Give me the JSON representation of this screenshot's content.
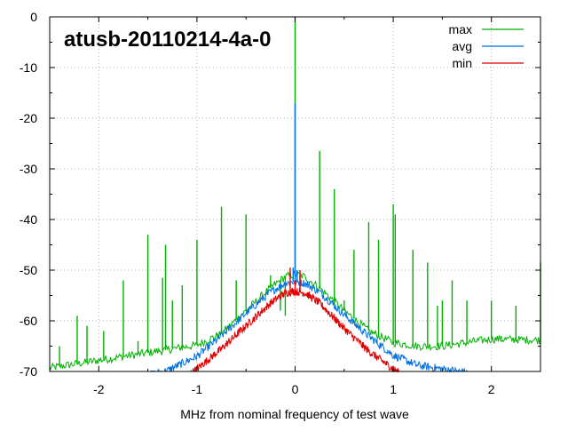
{
  "chart_data": {
    "type": "line",
    "title": "atusb-20110214-4a-0",
    "xlabel": "MHz from nominal frequency of test wave",
    "ylabel": "",
    "xlim": [
      -2.5,
      2.5
    ],
    "ylim": [
      -70,
      0
    ],
    "xticks": [
      -2,
      -1,
      0,
      1,
      2
    ],
    "xtick_labels": [
      "-2",
      "-1",
      "0",
      "1",
      "2"
    ],
    "yticks": [
      0,
      -10,
      -20,
      -30,
      -40,
      -50,
      -60,
      -70
    ],
    "ytick_labels": [
      "0",
      "-10",
      "-20",
      "-30",
      "-40",
      "-50",
      "-60",
      "-70"
    ],
    "grid": true,
    "legend_position": "top-right",
    "series": [
      {
        "name": "max",
        "color": "#00b000",
        "baseline": [
          [
            -2.5,
            -69.3
          ],
          [
            -2.0,
            -67.8
          ],
          [
            -1.5,
            -66.3
          ],
          [
            -1.0,
            -64.8
          ],
          [
            -0.75,
            -62.5
          ],
          [
            -0.5,
            -58.0
          ],
          [
            -0.25,
            -53.5
          ],
          [
            -0.1,
            -51.3
          ],
          [
            0.0,
            -50.8
          ],
          [
            0.1,
            -51.3
          ],
          [
            0.25,
            -53.5
          ],
          [
            0.5,
            -58.0
          ],
          [
            0.75,
            -62.0
          ],
          [
            1.0,
            -64.3
          ],
          [
            1.25,
            -65.0
          ],
          [
            1.5,
            -65.0
          ],
          [
            2.0,
            -63.6
          ],
          [
            2.5,
            -63.8
          ]
        ],
        "spurs": [
          [
            -2.4,
            -65
          ],
          [
            -2.22,
            -59
          ],
          [
            -2.12,
            -61
          ],
          [
            -1.95,
            -62
          ],
          [
            -1.75,
            -52
          ],
          [
            -1.6,
            -64
          ],
          [
            -1.5,
            -43
          ],
          [
            -1.35,
            -51.5
          ],
          [
            -1.32,
            -45
          ],
          [
            -1.25,
            -56
          ],
          [
            -1.15,
            -53
          ],
          [
            -1.0,
            -44
          ],
          [
            -0.75,
            -37.5
          ],
          [
            -0.6,
            -52
          ],
          [
            -0.5,
            -39
          ],
          [
            -0.25,
            -51
          ],
          [
            -0.15,
            -58
          ],
          [
            -0.1,
            -59
          ],
          [
            0.0,
            0
          ],
          [
            0.05,
            -53
          ],
          [
            0.25,
            -26.5
          ],
          [
            0.4,
            -34
          ],
          [
            0.5,
            -56
          ],
          [
            0.6,
            -46
          ],
          [
            0.75,
            -40.5
          ],
          [
            0.85,
            -44
          ],
          [
            1.0,
            -37
          ],
          [
            1.02,
            -39
          ],
          [
            1.2,
            -46
          ],
          [
            1.35,
            -48.5
          ],
          [
            1.45,
            -57
          ],
          [
            1.5,
            -56
          ],
          [
            1.6,
            -52
          ],
          [
            1.75,
            -56
          ],
          [
            2.0,
            -56
          ],
          [
            2.1,
            -63
          ],
          [
            2.25,
            -57
          ],
          [
            2.5,
            -48.5
          ]
        ]
      },
      {
        "name": "avg",
        "color": "#0070e0",
        "baseline": [
          [
            -1.5,
            -70.8
          ],
          [
            -1.3,
            -69.8
          ],
          [
            -1.0,
            -67.0
          ],
          [
            -0.75,
            -63.0
          ],
          [
            -0.5,
            -58.5
          ],
          [
            -0.25,
            -54.3
          ],
          [
            -0.1,
            -52.6
          ],
          [
            0.0,
            -52.3
          ],
          [
            0.1,
            -52.6
          ],
          [
            0.25,
            -54.3
          ],
          [
            0.5,
            -58.8
          ],
          [
            0.75,
            -63.0
          ],
          [
            1.0,
            -66.8
          ],
          [
            1.25,
            -68.8
          ],
          [
            1.5,
            -69.5
          ],
          [
            1.75,
            -70.2
          ]
        ],
        "spurs": [
          [
            -0.02,
            -49.5
          ],
          [
            0.0,
            -17
          ],
          [
            0.02,
            -50
          ]
        ]
      },
      {
        "name": "min",
        "color": "#e00000",
        "baseline": [
          [
            -1.1,
            -70.8
          ],
          [
            -1.0,
            -69.5
          ],
          [
            -0.75,
            -65.5
          ],
          [
            -0.5,
            -61.0
          ],
          [
            -0.25,
            -56.5
          ],
          [
            -0.1,
            -54.5
          ],
          [
            0.0,
            -54.2
          ],
          [
            0.1,
            -54.5
          ],
          [
            0.25,
            -56.5
          ],
          [
            0.5,
            -61.5
          ],
          [
            0.75,
            -66.0
          ],
          [
            1.0,
            -69.5
          ],
          [
            1.1,
            -70.8
          ]
        ],
        "spurs": [
          [
            -0.05,
            -49.5
          ],
          [
            0.0,
            -52
          ],
          [
            0.05,
            -50
          ]
        ]
      }
    ]
  }
}
